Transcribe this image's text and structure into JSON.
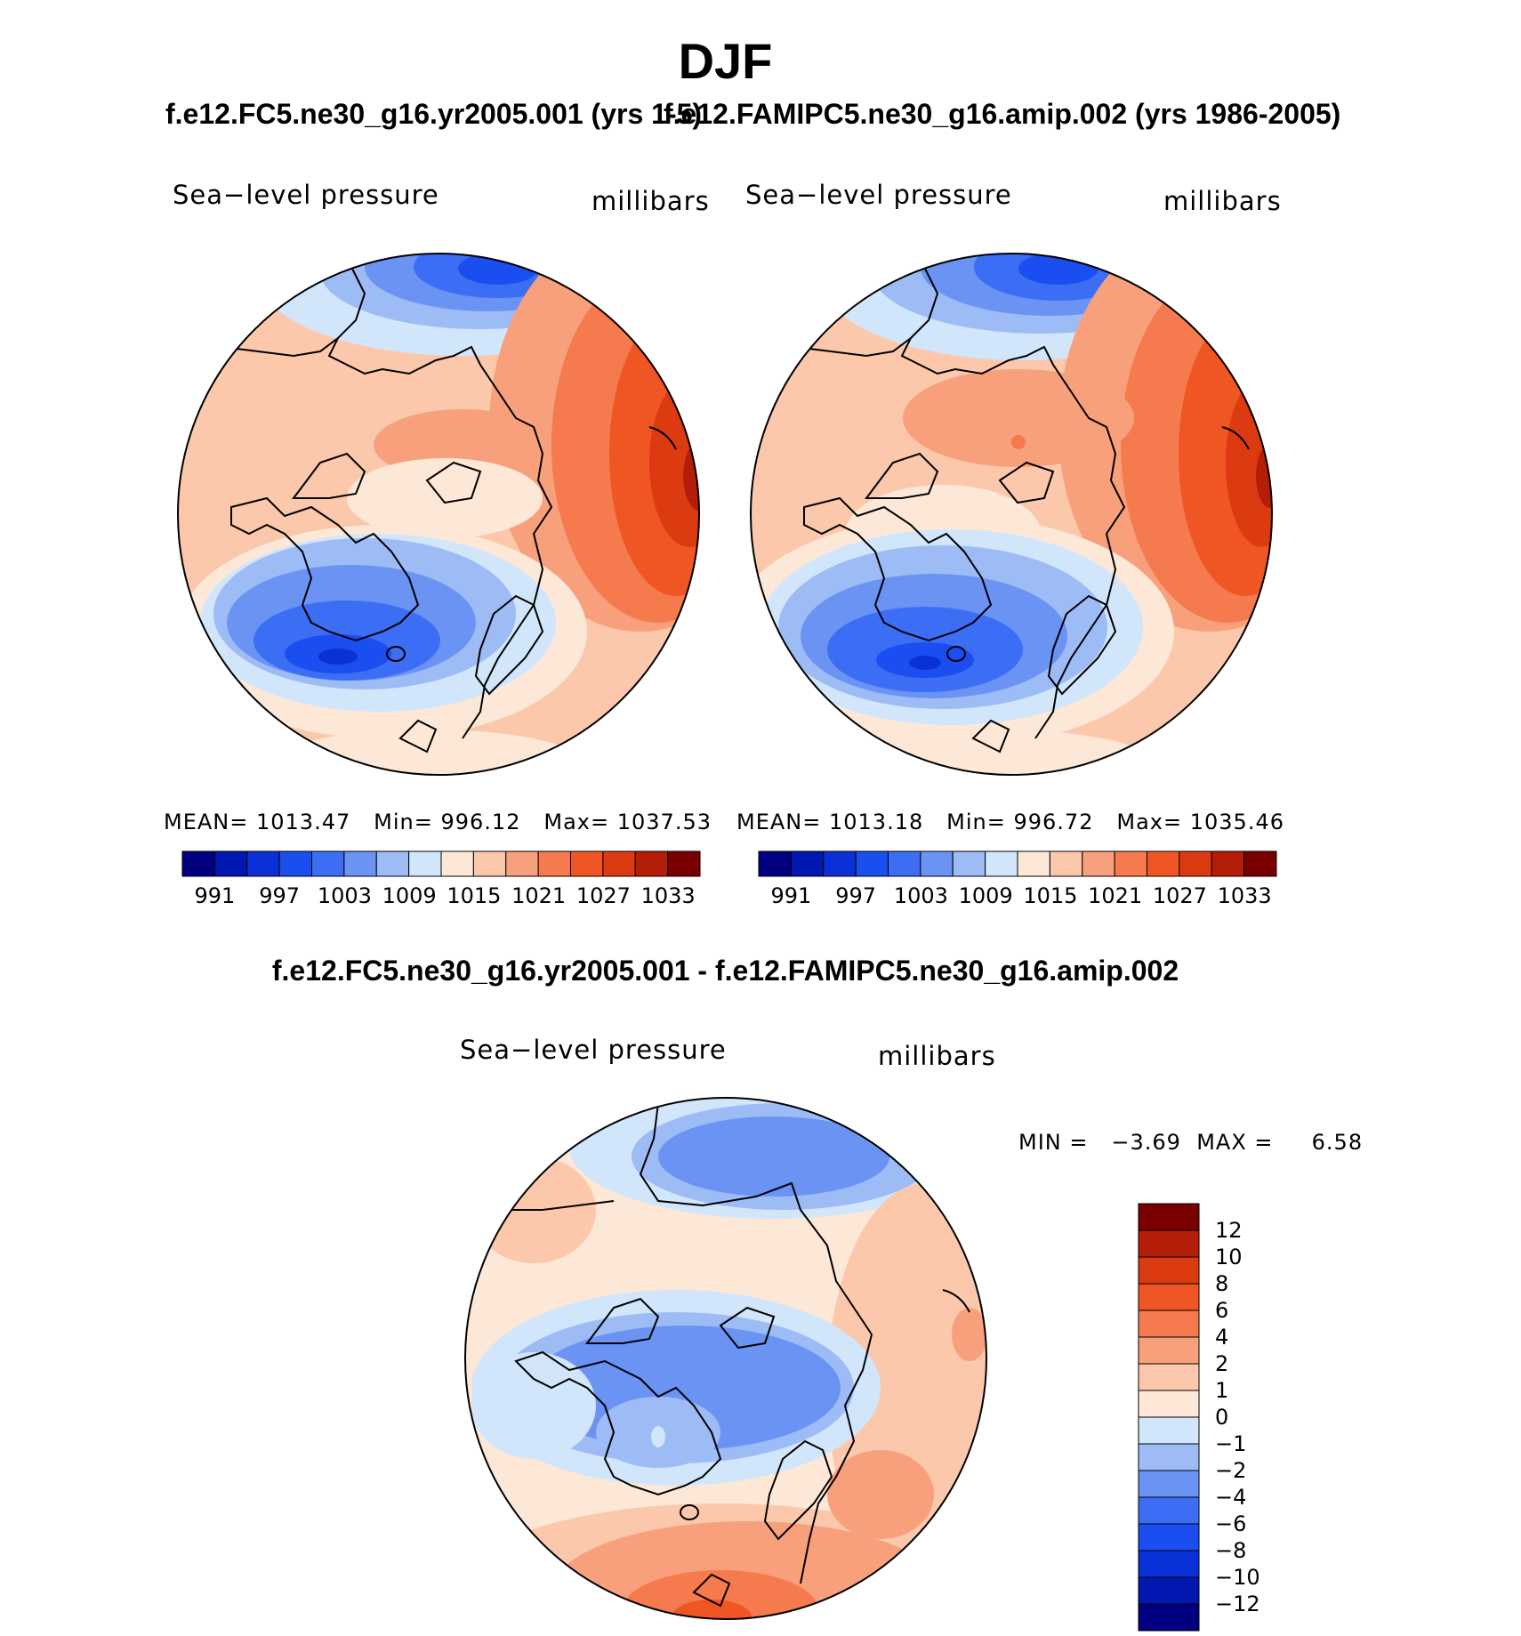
{
  "figure_title": "DJF",
  "panels": {
    "left": {
      "case_title": "f.e12.FC5.ne30_g16.yr2005.001 (yrs 1-5)",
      "variable": "Sea−level pressure",
      "units": "millibars",
      "stats": {
        "mean_label": "MEAN=",
        "mean": "1013.47",
        "min_label": "Min=",
        "min": "996.12",
        "max_label": "Max=",
        "max": "1037.53"
      }
    },
    "right": {
      "case_title": "f.e12.FAMIPC5.ne30_g16.amip.002 (yrs 1986-2005)",
      "variable": "Sea−level pressure",
      "units": "millibars",
      "stats": {
        "mean_label": "MEAN=",
        "mean": "1013.18",
        "min_label": "Min=",
        "min": "996.72",
        "max_label": "Max=",
        "max": "1035.46"
      }
    },
    "diff": {
      "title": "f.e12.FC5.ne30_g16.yr2005.001 - f.e12.FAMIPC5.ne30_g16.amip.002",
      "variable": "Sea−level pressure",
      "units": "millibars",
      "stats": {
        "min_label": "MIN =",
        "min": "−3.69",
        "max_label": "MAX =",
        "max": "6.58"
      }
    }
  },
  "abs_colorbar": {
    "colors": [
      "#000080",
      "#0018b0",
      "#0a30d8",
      "#1a4ef0",
      "#3c6ef5",
      "#6a93f3",
      "#9dbcf6",
      "#d2e6fb",
      "#fde8d8",
      "#fbc8ac",
      "#f8a07c",
      "#f57a4e",
      "#f05524",
      "#dc3a10",
      "#b41e08",
      "#7a0000"
    ],
    "tick_labels": [
      "991",
      "997",
      "1003",
      "1009",
      "1015",
      "1021",
      "1027",
      "1033"
    ]
  },
  "diff_colorbar": {
    "colors": [
      "#000080",
      "#0018b0",
      "#0a30d8",
      "#1a4ef0",
      "#3c6ef5",
      "#6a93f3",
      "#9dbcf6",
      "#d2e6fb",
      "#fde8d8",
      "#fbc8ac",
      "#f8a07c",
      "#f57a4e",
      "#f05524",
      "#dc3a10",
      "#b41e08",
      "#7a0000"
    ],
    "tick_labels": [
      "12",
      "10",
      "8",
      "6",
      "4",
      "2",
      "1",
      "0",
      "−1",
      "−2",
      "−4",
      "−6",
      "−8",
      "−10",
      "−12"
    ]
  },
  "chart_data": [
    {
      "type": "heatmap",
      "title": "DJF — f.e12.FC5.ne30_g16.yr2005.001 (yrs 1-5)",
      "variable": "Sea−level pressure",
      "units": "millibars",
      "projection": "north polar stereographic",
      "levels": [
        991,
        994,
        997,
        1000,
        1003,
        1006,
        1009,
        1012,
        1015,
        1018,
        1021,
        1024,
        1027,
        1030,
        1033
      ],
      "mean": 1013.47,
      "min": 996.12,
      "max": 1037.53
    },
    {
      "type": "heatmap",
      "title": "DJF — f.e12.FAMIPC5.ne30_g16.amip.002 (yrs 1986-2005)",
      "variable": "Sea−level pressure",
      "units": "millibars",
      "projection": "north polar stereographic",
      "levels": [
        991,
        994,
        997,
        1000,
        1003,
        1006,
        1009,
        1012,
        1015,
        1018,
        1021,
        1024,
        1027,
        1030,
        1033
      ],
      "mean": 1013.18,
      "min": 996.72,
      "max": 1035.46
    },
    {
      "type": "heatmap",
      "title": "f.e12.FC5.ne30_g16.yr2005.001 - f.e12.FAMIPC5.ne30_g16.amip.002",
      "variable": "Sea−level pressure",
      "units": "millibars",
      "projection": "north polar stereographic",
      "levels": [
        -12,
        -10,
        -8,
        -6,
        -4,
        -2,
        -1,
        0,
        1,
        2,
        4,
        6,
        8,
        10,
        12
      ],
      "min": -3.69,
      "max": 6.58
    }
  ]
}
